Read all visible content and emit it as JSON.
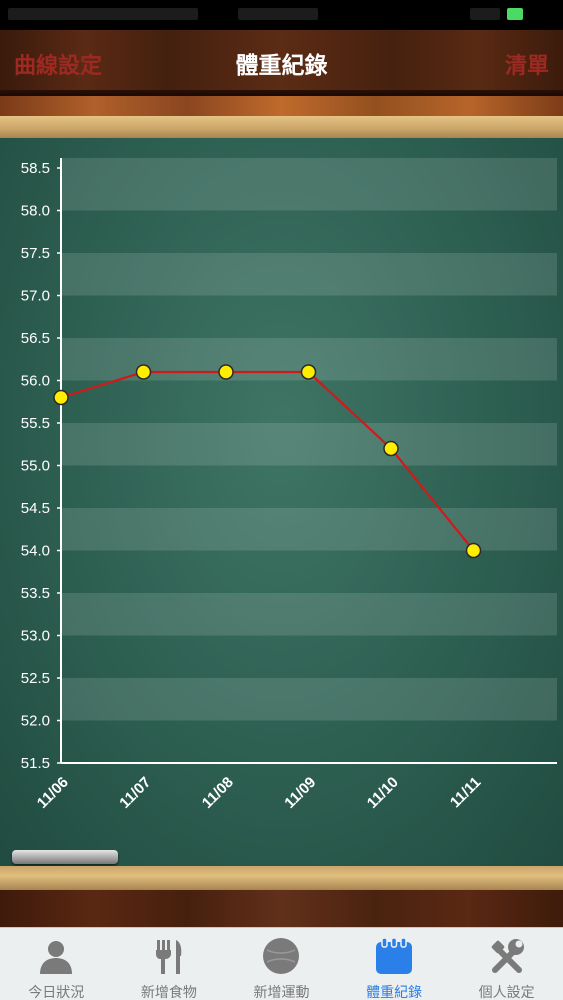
{
  "nav": {
    "left_button": "曲線設定",
    "title": "體重紀錄",
    "right_button": "清單"
  },
  "colors": {
    "line": "#d01a1a",
    "point_fill": "#ffee00",
    "point_stroke": "#2a2a2a",
    "tab_active": "#2a80e8",
    "tab_inactive": "#7a7a7a",
    "nav_button": "#9c2a22"
  },
  "chart_data": {
    "type": "line",
    "categories": [
      "11/06",
      "11/07",
      "11/08",
      "11/09",
      "11/10",
      "11/11"
    ],
    "values": [
      55.8,
      56.1,
      56.1,
      56.1,
      55.2,
      54.0
    ],
    "ylim": [
      51.5,
      58.5
    ],
    "yticks": [
      "58.5",
      "58.0",
      "57.5",
      "57.0",
      "56.5",
      "56.0",
      "55.5",
      "55.0",
      "54.5",
      "54.0",
      "53.5",
      "53.0",
      "52.5",
      "52.0",
      "51.5"
    ],
    "grid": "horizontal bands",
    "xlabel": "",
    "ylabel": ""
  },
  "tabs": [
    {
      "label": "今日狀況",
      "icon": "person-icon",
      "active": false
    },
    {
      "label": "新增食物",
      "icon": "fork-knife-icon",
      "active": false
    },
    {
      "label": "新增運動",
      "icon": "ball-icon",
      "active": false
    },
    {
      "label": "體重紀錄",
      "icon": "calendar-icon",
      "active": true
    },
    {
      "label": "個人設定",
      "icon": "tools-icon",
      "active": false
    }
  ]
}
